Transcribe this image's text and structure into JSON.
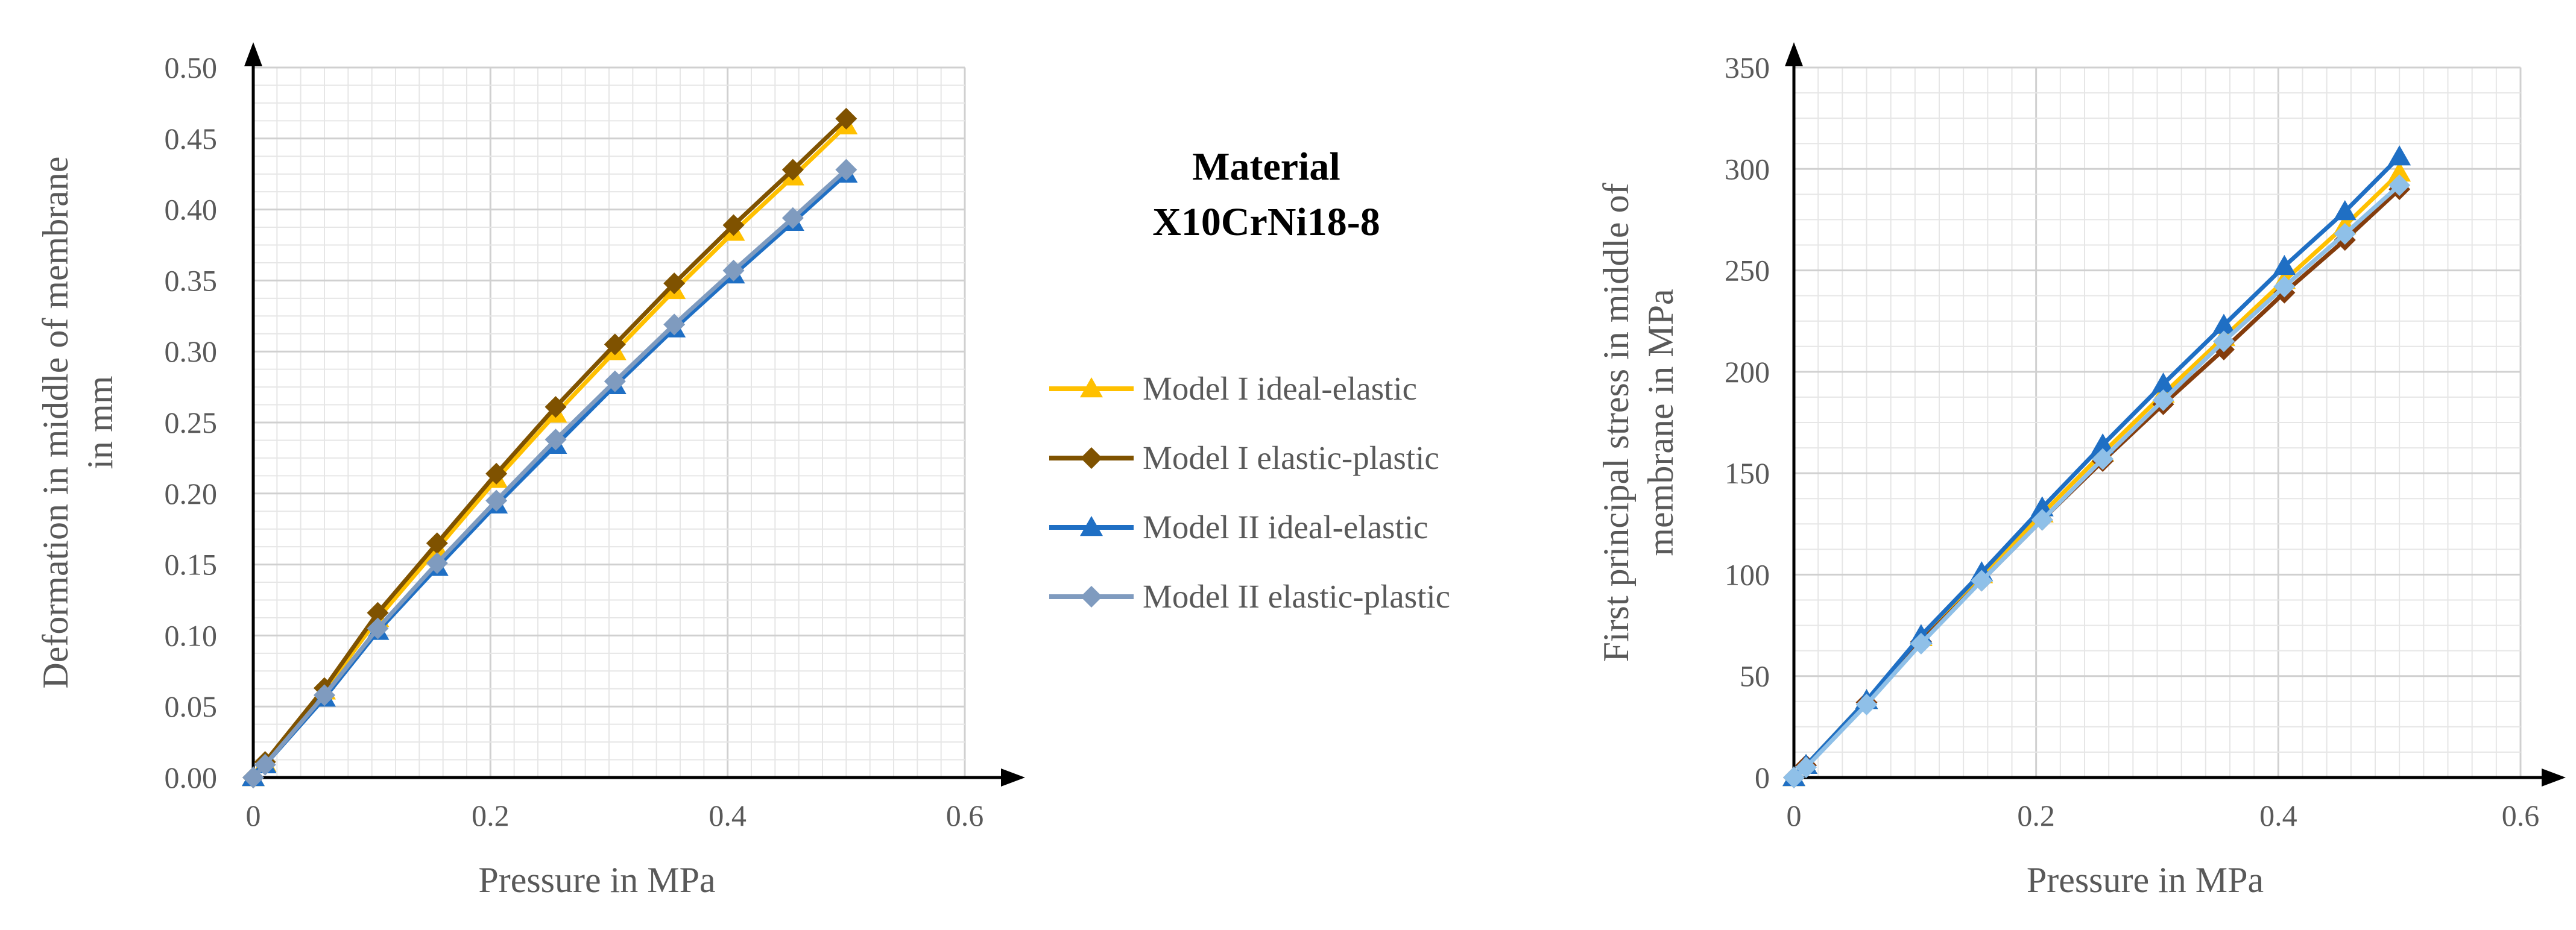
{
  "colors": {
    "model1_ideal_elastic": "#ffc000",
    "model1_elastic_plastic": "#7f5200",
    "model2_ideal_elastic": "#1f6fc4",
    "model2_elastic_plastic": "#7f9bbf",
    "chart2_model1_ideal_elastic": "#ffc000",
    "chart2_model1_elastic_plastic": "#843c0c",
    "chart2_model2_ideal_elastic": "#1f6fc4",
    "chart2_model2_elastic_plastic": "#8fc0e8"
  },
  "material_title": {
    "line1": "Material",
    "line2": "X10CrNi18-8"
  },
  "legend": {
    "placement": "center",
    "entries": [
      {
        "label": "Model I ideal-elastic",
        "marker": "triangle",
        "color_key": "model1_ideal_elastic"
      },
      {
        "label": "Model I elastic-plastic",
        "marker": "diamond",
        "color_key": "model1_elastic_plastic"
      },
      {
        "label": "Model II ideal-elastic",
        "marker": "triangle",
        "color_key": "model2_ideal_elastic"
      },
      {
        "label": "Model II elastic-plastic",
        "marker": "diamond",
        "color_key": "model2_elastic_plastic"
      }
    ]
  },
  "chart_data": [
    {
      "type": "line",
      "xlabel": "Pressure in MPa",
      "ylabel_lines": [
        "Deformation in middle of membrane",
        "in mm"
      ],
      "xlim": [
        0,
        0.6
      ],
      "ylim": [
        0,
        0.5
      ],
      "x_ticks": [
        "0",
        "0.2",
        "0.4",
        "0.6"
      ],
      "x_tick_values": [
        0,
        0.2,
        0.4,
        0.6
      ],
      "y_ticks": [
        "0.00",
        "0.05",
        "0.10",
        "0.15",
        "0.20",
        "0.25",
        "0.30",
        "0.35",
        "0.40",
        "0.45",
        "0.50"
      ],
      "y_tick_values": [
        0,
        0.05,
        0.1,
        0.15,
        0.2,
        0.25,
        0.3,
        0.35,
        0.4,
        0.45,
        0.5
      ],
      "grid": true,
      "x": [
        0,
        0.01,
        0.06,
        0.105,
        0.155,
        0.205,
        0.255,
        0.305,
        0.355,
        0.405,
        0.455,
        0.5
      ],
      "series": [
        {
          "name": "Model I ideal-elastic",
          "marker": "triangle",
          "color_key": "model1_ideal_elastic",
          "values": [
            0,
            0.01,
            0.061,
            0.112,
            0.161,
            0.21,
            0.256,
            0.3,
            0.343,
            0.384,
            0.423,
            0.459
          ]
        },
        {
          "name": "Model I elastic-plastic",
          "marker": "diamond",
          "color_key": "model1_elastic_plastic",
          "values": [
            0,
            0.011,
            0.063,
            0.116,
            0.165,
            0.214,
            0.261,
            0.305,
            0.348,
            0.389,
            0.428,
            0.464
          ]
        },
        {
          "name": "Model II ideal-elastic",
          "marker": "triangle",
          "color_key": "model2_ideal_elastic",
          "values": [
            0,
            0.009,
            0.056,
            0.103,
            0.148,
            0.192,
            0.234,
            0.276,
            0.316,
            0.354,
            0.391,
            0.425
          ]
        },
        {
          "name": "Model II elastic-plastic",
          "marker": "diamond",
          "color_key": "model2_elastic_plastic",
          "values": [
            0,
            0.009,
            0.058,
            0.105,
            0.151,
            0.195,
            0.238,
            0.279,
            0.319,
            0.357,
            0.394,
            0.428
          ]
        }
      ]
    },
    {
      "type": "line",
      "xlabel": "Pressure in MPa",
      "ylabel_lines": [
        "First principal stress in middle of",
        "membrane in MPa"
      ],
      "xlim": [
        0,
        0.6
      ],
      "ylim": [
        0,
        350
      ],
      "x_ticks": [
        "0",
        "0.2",
        "0.4",
        "0.6"
      ],
      "x_tick_values": [
        0,
        0.2,
        0.4,
        0.6
      ],
      "y_ticks": [
        "0",
        "50",
        "100",
        "150",
        "200",
        "250",
        "300",
        "350"
      ],
      "y_tick_values": [
        0,
        50,
        100,
        150,
        200,
        250,
        300,
        350
      ],
      "grid": true,
      "x": [
        0,
        0.01,
        0.06,
        0.105,
        0.155,
        0.205,
        0.255,
        0.305,
        0.355,
        0.405,
        0.455,
        0.5
      ],
      "series": [
        {
          "name": "Model I ideal-elastic",
          "marker": "triangle",
          "color_key": "chart2_model1_ideal_elastic",
          "values": [
            0,
            6,
            38,
            69,
            100,
            130,
            160,
            189,
            217,
            245,
            272,
            298
          ]
        },
        {
          "name": "Model I elastic-plastic",
          "marker": "diamond",
          "color_key": "chart2_model1_elastic_plastic",
          "values": [
            0,
            6,
            37,
            67,
            97,
            127,
            156,
            184,
            211,
            239,
            265,
            290
          ]
        },
        {
          "name": "Model II ideal-elastic",
          "marker": "triangle",
          "color_key": "chart2_model2_ideal_elastic",
          "values": [
            0,
            6,
            38,
            70,
            101,
            133,
            164,
            194,
            223,
            252,
            279,
            306
          ]
        },
        {
          "name": "Model II elastic-plastic",
          "marker": "diamond",
          "color_key": "chart2_model2_elastic_plastic",
          "values": [
            0,
            5,
            36,
            66,
            97,
            127,
            157,
            186,
            215,
            242,
            268,
            292
          ]
        }
      ]
    }
  ]
}
